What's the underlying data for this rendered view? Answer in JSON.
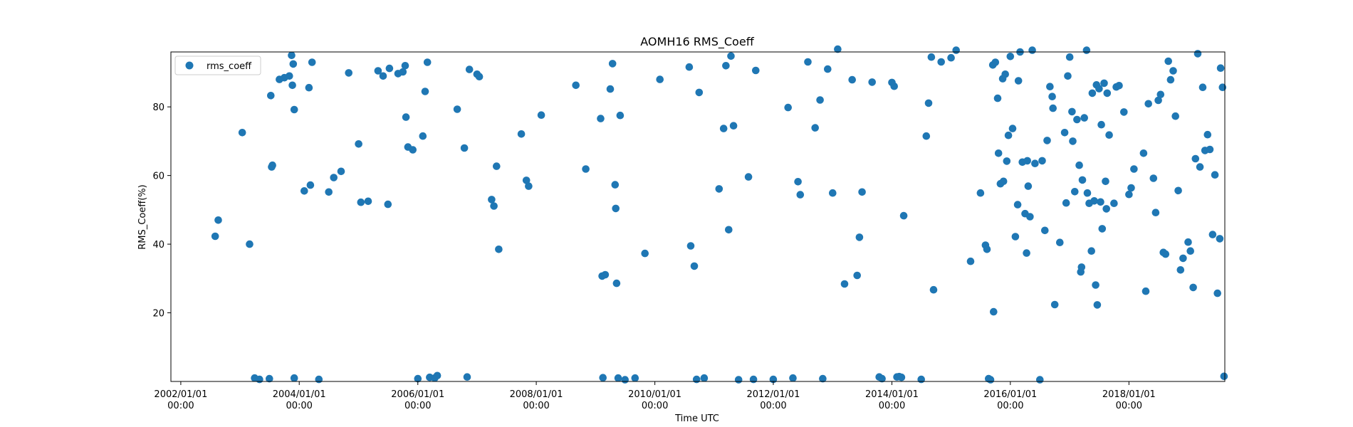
{
  "chart_data": {
    "type": "scatter",
    "title": "AOMH16 RMS_Coeff",
    "xlabel": "Time UTC",
    "ylabel": "RMS_Coeff(%)",
    "x_is_date": true,
    "xlim": [
      "2001/11/01",
      "2019/08/15"
    ],
    "ylim": [
      0,
      96
    ],
    "x_ticks": [
      {
        "value": "2002/01/01",
        "line1": "2002/01/01",
        "line2": "00:00"
      },
      {
        "value": "2004/01/01",
        "line1": "2004/01/01",
        "line2": "00:00"
      },
      {
        "value": "2006/01/01",
        "line1": "2006/01/01",
        "line2": "00:00"
      },
      {
        "value": "2008/01/01",
        "line1": "2008/01/01",
        "line2": "00:00"
      },
      {
        "value": "2010/01/01",
        "line1": "2010/01/01",
        "line2": "00:00"
      },
      {
        "value": "2012/01/01",
        "line1": "2012/01/01",
        "line2": "00:00"
      },
      {
        "value": "2014/01/01",
        "line1": "2014/01/01",
        "line2": "00:00"
      },
      {
        "value": "2016/01/01",
        "line1": "2016/01/01",
        "line2": "00:00"
      },
      {
        "value": "2018/01/01",
        "line1": "2018/01/01",
        "line2": "00:00"
      }
    ],
    "y_ticks": [
      20,
      40,
      60,
      80
    ],
    "grid": false,
    "legend": {
      "position": "top-left",
      "entries": [
        {
          "label": "rms_coeff",
          "color": "#1f77b4",
          "marker": "circle"
        }
      ]
    },
    "marker_color": "#1f77b4",
    "series": [
      {
        "name": "rms_coeff",
        "points": [
          [
            "2002/08/01",
            42.3
          ],
          [
            "2002/08/20",
            47
          ],
          [
            "2003/01/15",
            72.5
          ],
          [
            "2003/03/01",
            40
          ],
          [
            "2003/04/01",
            1
          ],
          [
            "2003/05/01",
            0.6
          ],
          [
            "2003/07/01",
            0.8
          ],
          [
            "2003/07/10",
            83.3
          ],
          [
            "2003/07/15",
            62.5
          ],
          [
            "2003/07/20",
            63
          ],
          [
            "2003/09/01",
            88
          ],
          [
            "2003/10/01",
            88.5
          ],
          [
            "2003/11/01",
            89
          ],
          [
            "2003/11/15",
            95
          ],
          [
            "2003/11/20",
            86.3
          ],
          [
            "2003/11/25",
            92.5
          ],
          [
            "2003/12/01",
            79.2
          ],
          [
            "2003/12/01",
            1
          ],
          [
            "2004/02/01",
            55.5
          ],
          [
            "2004/03/01",
            85.6
          ],
          [
            "2004/03/10",
            57.2
          ],
          [
            "2004/03/20",
            93
          ],
          [
            "2004/05/01",
            0.6
          ],
          [
            "2004/07/01",
            55.2
          ],
          [
            "2004/08/01",
            59.4
          ],
          [
            "2004/09/15",
            61.2
          ],
          [
            "2004/11/01",
            89.9
          ],
          [
            "2005/01/01",
            69.2
          ],
          [
            "2005/01/15",
            52.2
          ],
          [
            "2005/03/01",
            52.5
          ],
          [
            "2005/05/01",
            90.5
          ],
          [
            "2005/06/01",
            89
          ],
          [
            "2005/07/01",
            51.6
          ],
          [
            "2005/07/10",
            91.2
          ],
          [
            "2005/09/01",
            89.7
          ],
          [
            "2005/10/01",
            90.2
          ],
          [
            "2005/10/15",
            92
          ],
          [
            "2005/10/20",
            77
          ],
          [
            "2005/11/01",
            68.3
          ],
          [
            "2005/12/01",
            67.5
          ],
          [
            "2006/01/01",
            0.8
          ],
          [
            "2006/02/01",
            71.5
          ],
          [
            "2006/02/15",
            84.5
          ],
          [
            "2006/03/01",
            93
          ],
          [
            "2006/03/15",
            1.2
          ],
          [
            "2006/04/15",
            1
          ],
          [
            "2006/05/01",
            1.7
          ],
          [
            "2006/09/01",
            79.3
          ],
          [
            "2006/10/15",
            68
          ],
          [
            "2006/11/01",
            1.3
          ],
          [
            "2006/11/15",
            90.9
          ],
          [
            "2007/01/01",
            89.5
          ],
          [
            "2007/01/15",
            88.8
          ],
          [
            "2007/04/01",
            53
          ],
          [
            "2007/04/15",
            51.1
          ],
          [
            "2007/05/01",
            62.7
          ],
          [
            "2007/05/15",
            38.5
          ],
          [
            "2007/10/01",
            72.1
          ],
          [
            "2007/11/01",
            58.6
          ],
          [
            "2007/11/15",
            56.9
          ],
          [
            "2008/02/01",
            77.6
          ],
          [
            "2008/09/01",
            86.3
          ],
          [
            "2008/11/01",
            61.9
          ],
          [
            "2009/02/01",
            76.6
          ],
          [
            "2009/02/10",
            30.7
          ],
          [
            "2009/02/15",
            1.1
          ],
          [
            "2009/03/01",
            31.1
          ],
          [
            "2009/04/01",
            85.2
          ],
          [
            "2009/04/15",
            92.6
          ],
          [
            "2009/05/01",
            57.3
          ],
          [
            "2009/05/05",
            50.4
          ],
          [
            "2009/05/10",
            28.6
          ],
          [
            "2009/05/20",
            1
          ],
          [
            "2009/06/01",
            77.5
          ],
          [
            "2009/07/01",
            0.5
          ],
          [
            "2009/09/01",
            1
          ],
          [
            "2009/11/01",
            37.3
          ],
          [
            "2010/02/01",
            88
          ],
          [
            "2010/08/01",
            91.6
          ],
          [
            "2010/08/10",
            39.5
          ],
          [
            "2010/09/01",
            33.6
          ],
          [
            "2010/09/15",
            0.6
          ],
          [
            "2010/10/01",
            84.2
          ],
          [
            "2010/11/01",
            1
          ],
          [
            "2011/02/01",
            56.1
          ],
          [
            "2011/03/01",
            73.7
          ],
          [
            "2011/03/15",
            92
          ],
          [
            "2011/04/01",
            44.2
          ],
          [
            "2011/04/15",
            94.8
          ],
          [
            "2011/05/01",
            74.5
          ],
          [
            "2011/06/01",
            0.5
          ],
          [
            "2011/08/01",
            59.6
          ],
          [
            "2011/09/01",
            0.6
          ],
          [
            "2011/09/15",
            90.6
          ],
          [
            "2012/01/01",
            0.6
          ],
          [
            "2012/04/01",
            79.8
          ],
          [
            "2012/05/01",
            1
          ],
          [
            "2012/06/01",
            58.2
          ],
          [
            "2012/06/15",
            54.4
          ],
          [
            "2012/08/01",
            93.1
          ],
          [
            "2012/09/15",
            73.9
          ],
          [
            "2012/10/15",
            82
          ],
          [
            "2012/11/01",
            0.8
          ],
          [
            "2012/12/01",
            91
          ],
          [
            "2013/01/01",
            54.9
          ],
          [
            "2013/02/01",
            96.8
          ],
          [
            "2013/03/15",
            28.4
          ],
          [
            "2013/05/01",
            87.9
          ],
          [
            "2013/06/01",
            30.9
          ],
          [
            "2013/06/15",
            42
          ],
          [
            "2013/07/01",
            55.2
          ],
          [
            "2013/09/01",
            87.2
          ],
          [
            "2013/10/15",
            1.3
          ],
          [
            "2013/11/01",
            0.8
          ],
          [
            "2014/01/01",
            87.1
          ],
          [
            "2014/01/15",
            86
          ],
          [
            "2014/02/01",
            1.3
          ],
          [
            "2014/02/15",
            1.4
          ],
          [
            "2014/03/01",
            1.2
          ],
          [
            "2014/03/15",
            48.3
          ],
          [
            "2014/07/01",
            0.6
          ],
          [
            "2014/08/01",
            71.5
          ],
          [
            "2014/08/15",
            81.1
          ],
          [
            "2014/09/01",
            94.5
          ],
          [
            "2014/09/15",
            26.7
          ],
          [
            "2014/11/01",
            93.1
          ],
          [
            "2015/01/01",
            94.3
          ],
          [
            "2015/02/01",
            96.5
          ],
          [
            "2015/05/01",
            35
          ],
          [
            "2015/07/01",
            54.9
          ],
          [
            "2015/08/01",
            39.7
          ],
          [
            "2015/08/10",
            38.5
          ],
          [
            "2015/08/20",
            0.8
          ],
          [
            "2015/09/01",
            0.5
          ],
          [
            "2015/09/15",
            92.2
          ],
          [
            "2015/09/20",
            20.3
          ],
          [
            "2015/10/01",
            93
          ],
          [
            "2015/10/15",
            82.5
          ],
          [
            "2015/10/20",
            66.5
          ],
          [
            "2015/11/01",
            57.6
          ],
          [
            "2015/11/15",
            88.2
          ],
          [
            "2015/11/20",
            58.3
          ],
          [
            "2015/12/01",
            89.5
          ],
          [
            "2015/12/10",
            64.2
          ],
          [
            "2015/12/20",
            71.7
          ],
          [
            "2016/01/01",
            94.7
          ],
          [
            "2016/01/15",
            73.7
          ],
          [
            "2016/02/01",
            42.2
          ],
          [
            "2016/02/15",
            51.5
          ],
          [
            "2016/02/20",
            87.6
          ],
          [
            "2016/03/01",
            96
          ],
          [
            "2016/03/15",
            63.9
          ],
          [
            "2016/04/01",
            48.9
          ],
          [
            "2016/04/10",
            37.4
          ],
          [
            "2016/04/15",
            64.3
          ],
          [
            "2016/04/20",
            56.9
          ],
          [
            "2016/05/01",
            48
          ],
          [
            "2016/05/15",
            96.5
          ],
          [
            "2016/06/01",
            63.5
          ],
          [
            "2016/07/01",
            0.5
          ],
          [
            "2016/07/15",
            64.3
          ],
          [
            "2016/08/01",
            44
          ],
          [
            "2016/08/15",
            70.2
          ],
          [
            "2016/09/01",
            85.9
          ],
          [
            "2016/09/15",
            83
          ],
          [
            "2016/09/20",
            79.6
          ],
          [
            "2016/10/01",
            22.4
          ],
          [
            "2016/11/01",
            40.5
          ],
          [
            "2016/12/01",
            72.5
          ],
          [
            "2016/12/10",
            52
          ],
          [
            "2016/12/20",
            89
          ],
          [
            "2017/01/01",
            94.5
          ],
          [
            "2017/01/15",
            78.6
          ],
          [
            "2017/01/20",
            70
          ],
          [
            "2017/02/01",
            55.3
          ],
          [
            "2017/02/15",
            76.3
          ],
          [
            "2017/03/01",
            63
          ],
          [
            "2017/03/10",
            31.9
          ],
          [
            "2017/03/15",
            33.3
          ],
          [
            "2017/03/20",
            58.7
          ],
          [
            "2017/04/01",
            76.8
          ],
          [
            "2017/04/15",
            96.5
          ],
          [
            "2017/04/20",
            54.9
          ],
          [
            "2017/05/01",
            51.9
          ],
          [
            "2017/05/15",
            38
          ],
          [
            "2017/05/20",
            84
          ],
          [
            "2017/06/01",
            52.6
          ],
          [
            "2017/06/10",
            28.1
          ],
          [
            "2017/06/15",
            86.4
          ],
          [
            "2017/06/20",
            22.3
          ],
          [
            "2017/07/01",
            85.3
          ],
          [
            "2017/07/10",
            52.3
          ],
          [
            "2017/07/15",
            74.8
          ],
          [
            "2017/07/20",
            44.5
          ],
          [
            "2017/08/01",
            86.9
          ],
          [
            "2017/08/10",
            58.3
          ],
          [
            "2017/08/15",
            50.3
          ],
          [
            "2017/08/20",
            84
          ],
          [
            "2017/09/01",
            71.8
          ],
          [
            "2017/10/01",
            51.9
          ],
          [
            "2017/10/15",
            85.8
          ],
          [
            "2017/11/01",
            86.2
          ],
          [
            "2017/12/01",
            78.5
          ],
          [
            "2018/01/01",
            54.5
          ],
          [
            "2018/01/15",
            56.4
          ],
          [
            "2018/02/01",
            61.9
          ],
          [
            "2018/04/01",
            66.5
          ],
          [
            "2018/04/15",
            26.3
          ],
          [
            "2018/05/01",
            80.9
          ],
          [
            "2018/06/01",
            59.2
          ],
          [
            "2018/06/15",
            49.2
          ],
          [
            "2018/07/01",
            81.9
          ],
          [
            "2018/07/15",
            83.6
          ],
          [
            "2018/08/01",
            37.6
          ],
          [
            "2018/08/15",
            37.1
          ],
          [
            "2018/09/01",
            93.3
          ],
          [
            "2018/09/15",
            87.9
          ],
          [
            "2018/10/01",
            90.5
          ],
          [
            "2018/10/15",
            77.3
          ],
          [
            "2018/11/01",
            55.6
          ],
          [
            "2018/11/15",
            32.5
          ],
          [
            "2018/12/01",
            35.9
          ],
          [
            "2019/01/01",
            40.6
          ],
          [
            "2019/01/15",
            38
          ],
          [
            "2019/02/01",
            27.4
          ],
          [
            "2019/02/15",
            64.9
          ],
          [
            "2019/03/01",
            95.5
          ],
          [
            "2019/03/15",
            62.5
          ],
          [
            "2019/04/01",
            85.7
          ],
          [
            "2019/04/15",
            67.3
          ],
          [
            "2019/05/01",
            71.9
          ],
          [
            "2019/05/15",
            67.6
          ],
          [
            "2019/06/01",
            42.8
          ],
          [
            "2019/06/15",
            60.2
          ],
          [
            "2019/07/01",
            25.7
          ],
          [
            "2019/07/15",
            41.6
          ],
          [
            "2019/07/20",
            91.3
          ],
          [
            "2019/08/01",
            85.7
          ],
          [
            "2019/08/10",
            1.5
          ]
        ]
      }
    ]
  }
}
